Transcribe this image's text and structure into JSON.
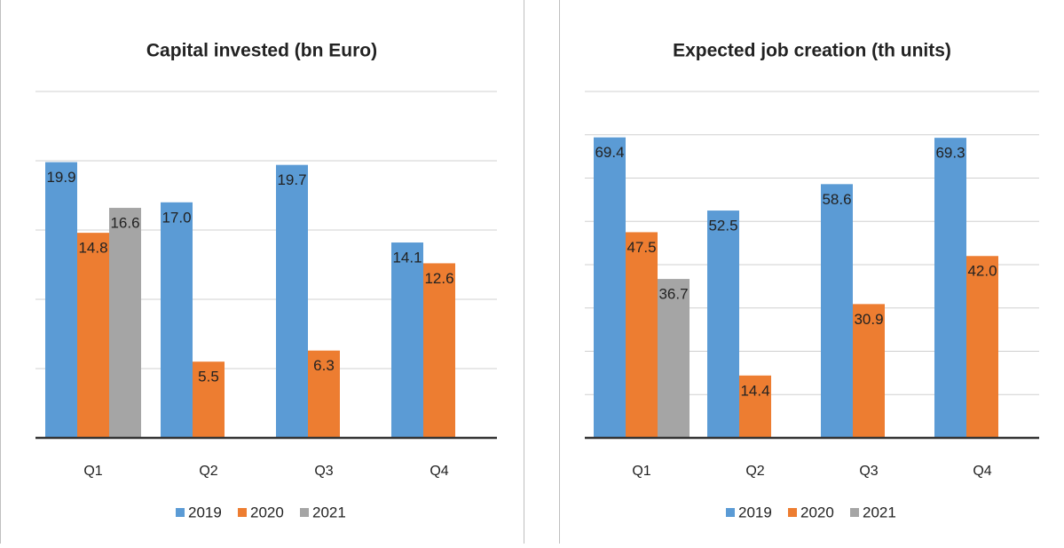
{
  "chart_data": [
    {
      "type": "bar",
      "title": "Capital invested (bn Euro)",
      "categories": [
        "Q1",
        "Q2",
        "Q3",
        "Q4"
      ],
      "series": [
        {
          "name": "2019",
          "color": "#5b9bd5",
          "values": [
            19.9,
            17.0,
            19.7,
            14.1
          ],
          "value_labels": [
            "19.9",
            "17.0",
            "19.7",
            "14.1"
          ]
        },
        {
          "name": "2020",
          "color": "#ed7d31",
          "values": [
            14.8,
            5.5,
            6.3,
            12.6
          ],
          "value_labels": [
            "14.8",
            "5.5",
            "6.3",
            "12.6"
          ]
        },
        {
          "name": "2021",
          "color": "#a5a5a5",
          "values": [
            16.6,
            null,
            null,
            null
          ],
          "value_labels": [
            "16.6",
            null,
            null,
            null
          ]
        }
      ],
      "ylim": [
        0,
        25
      ],
      "yticks": [
        0,
        5,
        10,
        15,
        20,
        25
      ],
      "grid": true,
      "legend": "bottom"
    },
    {
      "type": "bar",
      "title": "Expected job creation (th units)",
      "categories": [
        "Q1",
        "Q2",
        "Q3",
        "Q4"
      ],
      "series": [
        {
          "name": "2019",
          "color": "#5b9bd5",
          "values": [
            69.4,
            52.5,
            58.6,
            69.3
          ],
          "value_labels": [
            "69.4",
            "52.5",
            "58.6",
            "69.3"
          ]
        },
        {
          "name": "2020",
          "color": "#ed7d31",
          "values": [
            47.5,
            14.4,
            30.9,
            42.0
          ],
          "value_labels": [
            "47.5",
            "14.4",
            "30.9",
            "42.0"
          ]
        },
        {
          "name": "2021",
          "color": "#a5a5a5",
          "values": [
            36.7,
            null,
            null,
            null
          ],
          "value_labels": [
            "36.7",
            null,
            null,
            null
          ]
        }
      ],
      "ylim": [
        0,
        80
      ],
      "yticks": [
        0,
        10,
        20,
        30,
        40,
        50,
        60,
        70,
        80
      ],
      "grid": true,
      "legend": "bottom"
    }
  ]
}
